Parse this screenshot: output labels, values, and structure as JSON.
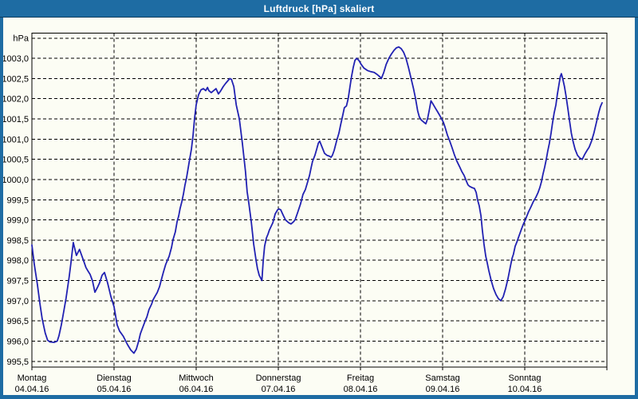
{
  "window": {
    "title": "Luftdruck [hPa] skaliert"
  },
  "colors": {
    "titlebar": "#1e6ca3",
    "titlebar_text": "#ffffff",
    "canvas_bg": "#fcfdf4",
    "frame": "#000000",
    "grid": "#000000",
    "line": "#2121b2",
    "label_text": "#000000"
  },
  "chart_data": {
    "type": "line",
    "title": "Luftdruck [hPa] skaliert",
    "grid": {
      "style": "dashed",
      "horizontal": true,
      "vertical": true
    },
    "legend": "none",
    "y_axis": {
      "unit_label": "hPa",
      "tick_labels": [
        "1003,0",
        "1002,5",
        "1002,0",
        "1001,5",
        "1001,0",
        "1000,5",
        "1000,0",
        "999,5",
        "999,0",
        "998,5",
        "998,0",
        "997,5",
        "997,0",
        "996,5",
        "996,0",
        "995,5"
      ],
      "top_gridline_value": 1003.5,
      "tick_step": 0.5,
      "min": 995.5,
      "max": 1003.5
    },
    "x_axis": {
      "unit": "days",
      "hours_total": 168,
      "days": [
        {
          "name": "Montag",
          "date": "04.04.16"
        },
        {
          "name": "Dienstag",
          "date": "05.04.16"
        },
        {
          "name": "Mittwoch",
          "date": "06.04.16"
        },
        {
          "name": "Donnerstag",
          "date": "07.04.16"
        },
        {
          "name": "Freitag",
          "date": "08.04.16"
        },
        {
          "name": "Samstag",
          "date": "09.04.16"
        },
        {
          "name": "Sonntag",
          "date": "10.04.16"
        }
      ]
    },
    "series": [
      {
        "name": "Luftdruck",
        "color": "#2121b2",
        "points_t_hours_v_hpa": [
          [
            0,
            998.38
          ],
          [
            0.7,
            997.9
          ],
          [
            1.6,
            997.4
          ],
          [
            2.3,
            996.95
          ],
          [
            3.0,
            996.55
          ],
          [
            3.9,
            996.2
          ],
          [
            4.6,
            996.02
          ],
          [
            5.3,
            995.98
          ],
          [
            6.5,
            995.97
          ],
          [
            7.4,
            996.0
          ],
          [
            7.9,
            996.13
          ],
          [
            8.6,
            996.4
          ],
          [
            9.3,
            996.73
          ],
          [
            10.0,
            997.07
          ],
          [
            10.9,
            997.6
          ],
          [
            11.4,
            997.93
          ],
          [
            12.1,
            998.44
          ],
          [
            13.0,
            998.12
          ],
          [
            13.9,
            998.27
          ],
          [
            15.1,
            997.99
          ],
          [
            15.8,
            997.82
          ],
          [
            16.5,
            997.72
          ],
          [
            17.0,
            997.65
          ],
          [
            17.7,
            997.49
          ],
          [
            18.4,
            997.21
          ],
          [
            19.1,
            997.32
          ],
          [
            19.8,
            997.45
          ],
          [
            20.5,
            997.63
          ],
          [
            21.2,
            997.7
          ],
          [
            22.1,
            997.45
          ],
          [
            23.1,
            997.1
          ],
          [
            24.0,
            996.85
          ],
          [
            24.9,
            996.4
          ],
          [
            25.6,
            996.25
          ],
          [
            26.7,
            996.12
          ],
          [
            27.9,
            995.92
          ],
          [
            28.9,
            995.78
          ],
          [
            29.8,
            995.7
          ],
          [
            30.5,
            995.8
          ],
          [
            31.2,
            996.0
          ],
          [
            31.7,
            996.18
          ],
          [
            32.2,
            996.3
          ],
          [
            33.1,
            996.5
          ],
          [
            33.6,
            996.6
          ],
          [
            34.2,
            996.78
          ],
          [
            35.0,
            996.92
          ],
          [
            35.4,
            997.02
          ],
          [
            35.9,
            997.1
          ],
          [
            36.6,
            997.2
          ],
          [
            37.3,
            997.35
          ],
          [
            37.7,
            997.48
          ],
          [
            38.4,
            997.7
          ],
          [
            39.1,
            997.9
          ],
          [
            40.1,
            998.1
          ],
          [
            40.8,
            998.32
          ],
          [
            41.2,
            998.5
          ],
          [
            41.9,
            998.7
          ],
          [
            42.4,
            998.95
          ],
          [
            42.9,
            999.1
          ],
          [
            43.3,
            999.28
          ],
          [
            43.8,
            999.45
          ],
          [
            44.3,
            999.65
          ],
          [
            44.7,
            999.85
          ],
          [
            45.2,
            1000.05
          ],
          [
            45.7,
            1000.3
          ],
          [
            46.1,
            1000.5
          ],
          [
            46.6,
            1000.75
          ],
          [
            47.1,
            1001.1
          ],
          [
            47.5,
            1001.5
          ],
          [
            48.0,
            1001.85
          ],
          [
            48.7,
            1002.1
          ],
          [
            49.4,
            1002.22
          ],
          [
            50.1,
            1002.25
          ],
          [
            50.8,
            1002.2
          ],
          [
            51.3,
            1002.28
          ],
          [
            51.7,
            1002.2
          ],
          [
            52.4,
            1002.15
          ],
          [
            53.1,
            1002.2
          ],
          [
            53.8,
            1002.25
          ],
          [
            54.5,
            1002.12
          ],
          [
            55.2,
            1002.2
          ],
          [
            55.9,
            1002.3
          ],
          [
            56.6,
            1002.38
          ],
          [
            57.3,
            1002.45
          ],
          [
            57.8,
            1002.5
          ],
          [
            58.3,
            1002.48
          ],
          [
            59.0,
            1002.3
          ],
          [
            59.7,
            1001.85
          ],
          [
            60.6,
            1001.5
          ],
          [
            61.5,
            1000.9
          ],
          [
            62.4,
            1000.2
          ],
          [
            62.9,
            999.7
          ],
          [
            63.4,
            999.4
          ],
          [
            64.1,
            998.95
          ],
          [
            64.8,
            998.4
          ],
          [
            65.5,
            998.0
          ],
          [
            65.9,
            997.8
          ],
          [
            66.4,
            997.63
          ],
          [
            66.9,
            997.55
          ],
          [
            67.2,
            997.5
          ],
          [
            67.6,
            998.0
          ],
          [
            68.0,
            998.35
          ],
          [
            68.5,
            998.55
          ],
          [
            69.0,
            998.65
          ],
          [
            69.4,
            998.75
          ],
          [
            70.4,
            998.93
          ],
          [
            71.1,
            999.15
          ],
          [
            71.8,
            999.25
          ],
          [
            72.2,
            999.27
          ],
          [
            72.7,
            999.25
          ],
          [
            73.4,
            999.12
          ],
          [
            74.1,
            999.0
          ],
          [
            75.0,
            998.93
          ],
          [
            75.7,
            998.9
          ],
          [
            76.4,
            998.95
          ],
          [
            76.9,
            999.0
          ],
          [
            77.6,
            999.17
          ],
          [
            78.5,
            999.4
          ],
          [
            79.2,
            999.63
          ],
          [
            79.9,
            999.75
          ],
          [
            80.6,
            999.95
          ],
          [
            81.1,
            1000.1
          ],
          [
            81.6,
            1000.3
          ],
          [
            82.0,
            1000.45
          ],
          [
            82.7,
            1000.6
          ],
          [
            83.2,
            1000.75
          ],
          [
            83.7,
            1000.9
          ],
          [
            84.1,
            1000.95
          ],
          [
            84.8,
            1000.8
          ],
          [
            85.5,
            1000.65
          ],
          [
            86.2,
            1000.6
          ],
          [
            86.9,
            1000.58
          ],
          [
            87.4,
            1000.55
          ],
          [
            87.8,
            1000.6
          ],
          [
            88.3,
            1000.72
          ],
          [
            89.0,
            1000.95
          ],
          [
            89.7,
            1001.15
          ],
          [
            90.2,
            1001.35
          ],
          [
            90.9,
            1001.62
          ],
          [
            91.3,
            1001.78
          ],
          [
            91.9,
            1001.82
          ],
          [
            92.4,
            1002.0
          ],
          [
            92.9,
            1002.28
          ],
          [
            93.4,
            1002.55
          ],
          [
            93.9,
            1002.78
          ],
          [
            94.4,
            1002.95
          ],
          [
            94.9,
            1003.0
          ],
          [
            95.5,
            1002.95
          ],
          [
            96.2,
            1002.85
          ],
          [
            97.0,
            1002.76
          ],
          [
            98.0,
            1002.7
          ],
          [
            99.0,
            1002.67
          ],
          [
            100.0,
            1002.65
          ],
          [
            100.9,
            1002.6
          ],
          [
            101.6,
            1002.55
          ],
          [
            102.1,
            1002.5
          ],
          [
            102.8,
            1002.65
          ],
          [
            103.5,
            1002.85
          ],
          [
            104.3,
            1003.0
          ],
          [
            105.0,
            1003.1
          ],
          [
            105.8,
            1003.2
          ],
          [
            106.5,
            1003.26
          ],
          [
            107.2,
            1003.28
          ],
          [
            107.9,
            1003.24
          ],
          [
            108.6,
            1003.15
          ],
          [
            109.3,
            1003.0
          ],
          [
            110.0,
            1002.78
          ],
          [
            110.8,
            1002.5
          ],
          [
            111.5,
            1002.25
          ],
          [
            112.1,
            1002.0
          ],
          [
            112.7,
            1001.7
          ],
          [
            113.2,
            1001.55
          ],
          [
            113.8,
            1001.47
          ],
          [
            114.5,
            1001.42
          ],
          [
            115.1,
            1001.38
          ],
          [
            115.6,
            1001.5
          ],
          [
            116.1,
            1001.72
          ],
          [
            116.6,
            1001.95
          ],
          [
            117.1,
            1001.88
          ],
          [
            117.8,
            1001.78
          ],
          [
            118.5,
            1001.68
          ],
          [
            119.2,
            1001.58
          ],
          [
            119.7,
            1001.5
          ],
          [
            120.2,
            1001.42
          ],
          [
            120.7,
            1001.3
          ],
          [
            121.4,
            1001.1
          ],
          [
            122.1,
            1000.95
          ],
          [
            122.8,
            1000.78
          ],
          [
            123.5,
            1000.6
          ],
          [
            124.2,
            1000.45
          ],
          [
            124.9,
            1000.33
          ],
          [
            125.6,
            1000.2
          ],
          [
            126.3,
            1000.1
          ],
          [
            127.0,
            999.95
          ],
          [
            127.4,
            999.87
          ],
          [
            127.9,
            999.83
          ],
          [
            128.6,
            999.8
          ],
          [
            129.3,
            999.78
          ],
          [
            129.8,
            999.68
          ],
          [
            130.2,
            999.5
          ],
          [
            130.7,
            999.35
          ],
          [
            131.2,
            999.1
          ],
          [
            131.6,
            998.75
          ],
          [
            132.1,
            998.4
          ],
          [
            132.6,
            998.1
          ],
          [
            133.0,
            997.95
          ],
          [
            133.5,
            997.75
          ],
          [
            134.2,
            997.5
          ],
          [
            134.9,
            997.3
          ],
          [
            135.6,
            997.15
          ],
          [
            136.3,
            997.05
          ],
          [
            137.0,
            997.0
          ],
          [
            137.7,
            997.1
          ],
          [
            138.4,
            997.3
          ],
          [
            139.1,
            997.55
          ],
          [
            139.8,
            997.85
          ],
          [
            140.3,
            998.05
          ],
          [
            140.7,
            998.15
          ],
          [
            141.2,
            998.35
          ],
          [
            141.7,
            998.45
          ],
          [
            142.1,
            998.55
          ],
          [
            142.8,
            998.72
          ],
          [
            143.5,
            998.88
          ],
          [
            144.0,
            998.97
          ],
          [
            144.4,
            999.05
          ],
          [
            145.1,
            999.2
          ],
          [
            145.8,
            999.32
          ],
          [
            146.5,
            999.45
          ],
          [
            147.2,
            999.55
          ],
          [
            147.9,
            999.68
          ],
          [
            148.4,
            999.8
          ],
          [
            148.9,
            999.95
          ],
          [
            149.3,
            1000.12
          ],
          [
            149.8,
            1000.3
          ],
          [
            150.3,
            1000.5
          ],
          [
            150.7,
            1000.7
          ],
          [
            151.2,
            1000.9
          ],
          [
            151.7,
            1001.15
          ],
          [
            152.1,
            1001.4
          ],
          [
            152.6,
            1001.65
          ],
          [
            153.1,
            1001.85
          ],
          [
            153.5,
            1002.1
          ],
          [
            154.0,
            1002.35
          ],
          [
            154.4,
            1002.55
          ],
          [
            154.7,
            1002.62
          ],
          [
            155.1,
            1002.5
          ],
          [
            155.6,
            1002.3
          ],
          [
            156.1,
            1002.05
          ],
          [
            156.6,
            1001.75
          ],
          [
            157.1,
            1001.45
          ],
          [
            157.6,
            1001.15
          ],
          [
            158.1,
            1000.95
          ],
          [
            158.7,
            1000.75
          ],
          [
            159.4,
            1000.6
          ],
          [
            160.1,
            1000.53
          ],
          [
            160.8,
            1000.5
          ],
          [
            161.5,
            1000.62
          ],
          [
            162.2,
            1000.72
          ],
          [
            162.8,
            1000.8
          ],
          [
            163.5,
            1000.95
          ],
          [
            164.2,
            1001.15
          ],
          [
            164.9,
            1001.4
          ],
          [
            165.6,
            1001.65
          ],
          [
            166.1,
            1001.8
          ],
          [
            166.6,
            1001.9
          ]
        ]
      }
    ]
  }
}
